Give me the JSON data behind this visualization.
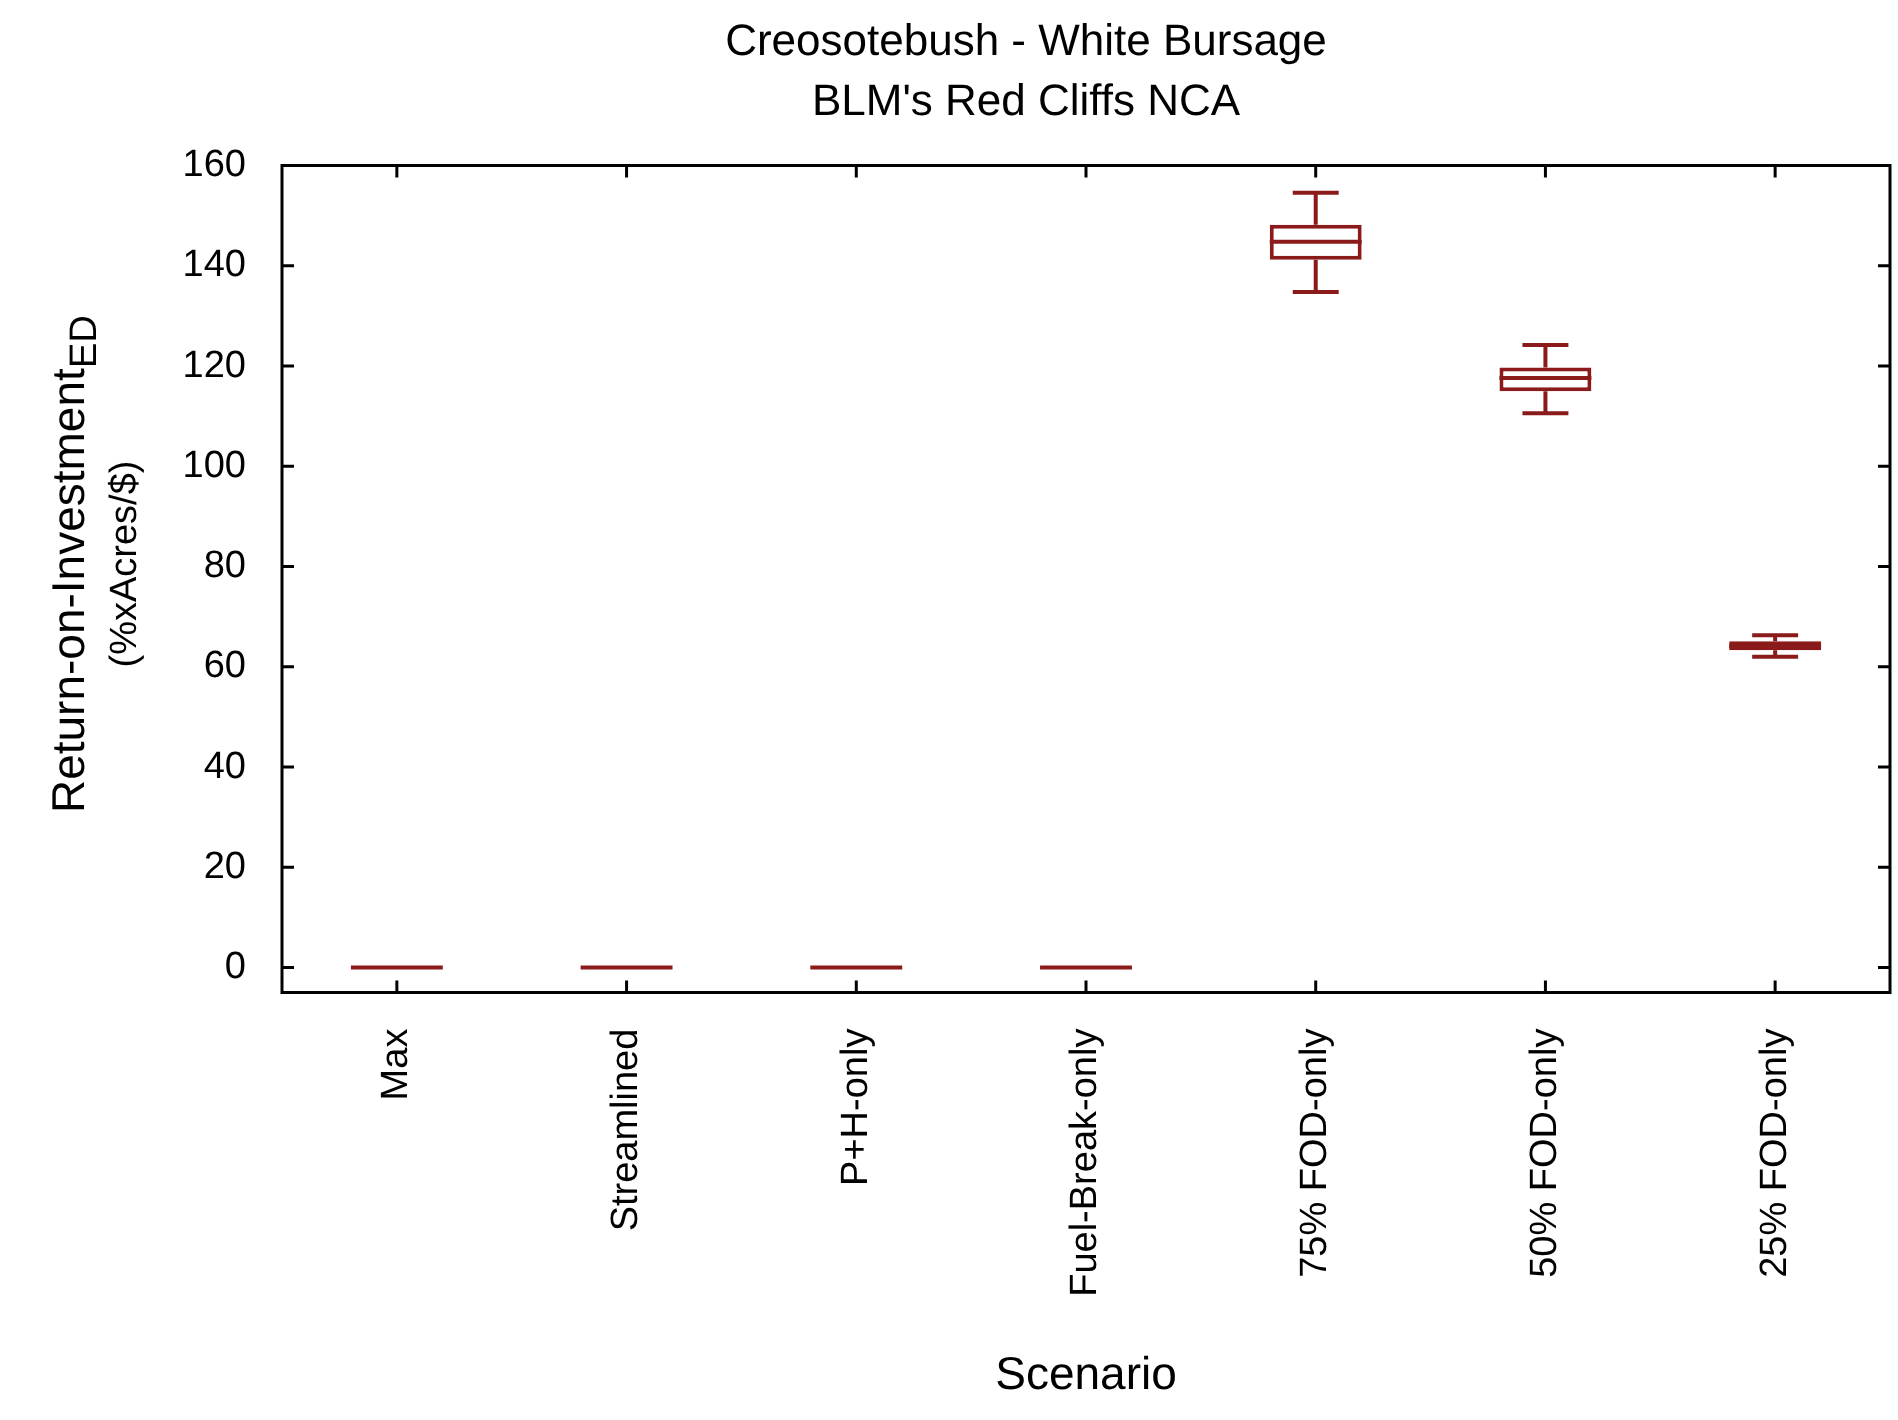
{
  "chart_data": {
    "type": "box",
    "title": "Creosotebush - White Bursage",
    "subtitle": "BLM's Red Cliffs NCA",
    "xlabel": "Scenario",
    "ylabel": "Return-on-Investment$_{ED}$\n(%xAcres/$)",
    "categories": [
      "Max",
      "Streamlined",
      "P+H-only",
      "Fuel-Break-only",
      "75% FOD-only",
      "50% FOD-only",
      "25% FOD-only"
    ],
    "color": "#8b1a1a",
    "ylim": [
      -5,
      160
    ],
    "yticks": [
      0,
      20,
      40,
      60,
      80,
      100,
      120,
      140,
      160
    ],
    "boxes": [
      {
        "low": 0,
        "q1": 0,
        "median": 0,
        "q3": 0,
        "high": 0
      },
      {
        "low": 0,
        "q1": 0,
        "median": 0,
        "q3": 0,
        "high": 0
      },
      {
        "low": 0,
        "q1": 0,
        "median": 0,
        "q3": 0,
        "high": 0
      },
      {
        "low": 0,
        "q1": 0,
        "median": 0,
        "q3": 0,
        "high": 0
      },
      {
        "low": 134.8,
        "q1": 141.2,
        "median": 144.8,
        "q3": 148.2,
        "high": 154.6
      },
      {
        "low": 110.6,
        "q1": 115,
        "median": 117.6,
        "q3": 119.7,
        "high": 124.2
      },
      {
        "low": 62,
        "q1": 63.3,
        "median": 64.1,
        "q3": 65.1,
        "high": 66.3
      }
    ]
  }
}
